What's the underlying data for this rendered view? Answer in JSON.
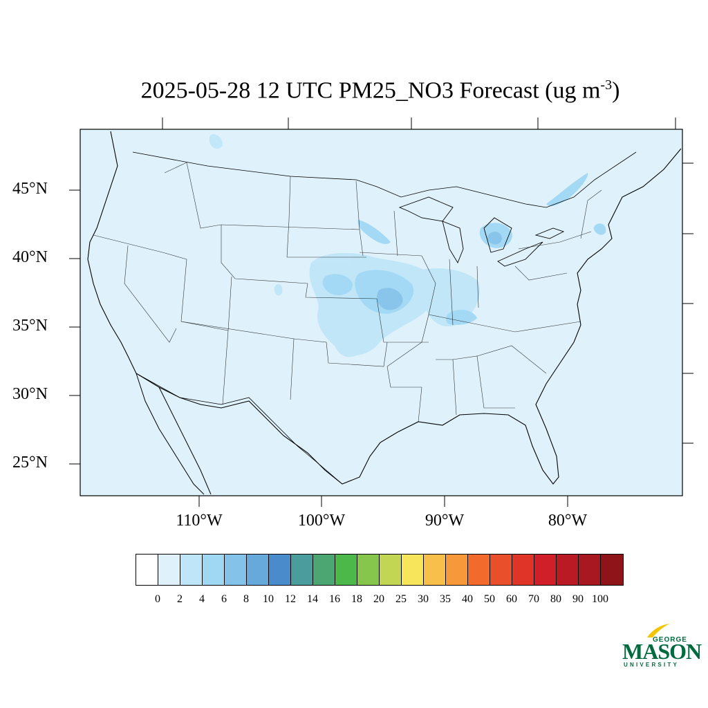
{
  "title": {
    "text": "2025-05-28 12 UTC PM25_NO3 Forecast (ug m",
    "exponent": "-3",
    "close": ")"
  },
  "map": {
    "lat_labels": [
      "45°N",
      "40°N",
      "35°N",
      "30°N",
      "25°N"
    ],
    "lon_labels": [
      "110°W",
      "100°W",
      "90°W",
      "80°W"
    ],
    "background_color": "#dff2fb",
    "region": "Contiguous United States"
  },
  "colorbar": {
    "labels": [
      "0",
      "2",
      "4",
      "6",
      "8",
      "10",
      "12",
      "14",
      "16",
      "18",
      "20",
      "25",
      "30",
      "35",
      "40",
      "50",
      "60",
      "70",
      "80",
      "90",
      "100"
    ],
    "colors": [
      "#ffffff",
      "#dff2fb",
      "#bfe6f8",
      "#a0d8f4",
      "#85c2ea",
      "#68a9dc",
      "#4a8bcb",
      "#4b9c9c",
      "#4ba672",
      "#4db84a",
      "#87c64c",
      "#c2d654",
      "#f7e65c",
      "#f8c04a",
      "#f7983a",
      "#f26b2c",
      "#e84f2a",
      "#e03428",
      "#d01f28",
      "#ba1a24",
      "#a81820",
      "#8e1419"
    ]
  },
  "logo": {
    "line1": "GEORGE",
    "line2": "MASON",
    "line3": "UNIVERSITY",
    "color": "#00693e",
    "accent_color": "#f2c500"
  }
}
